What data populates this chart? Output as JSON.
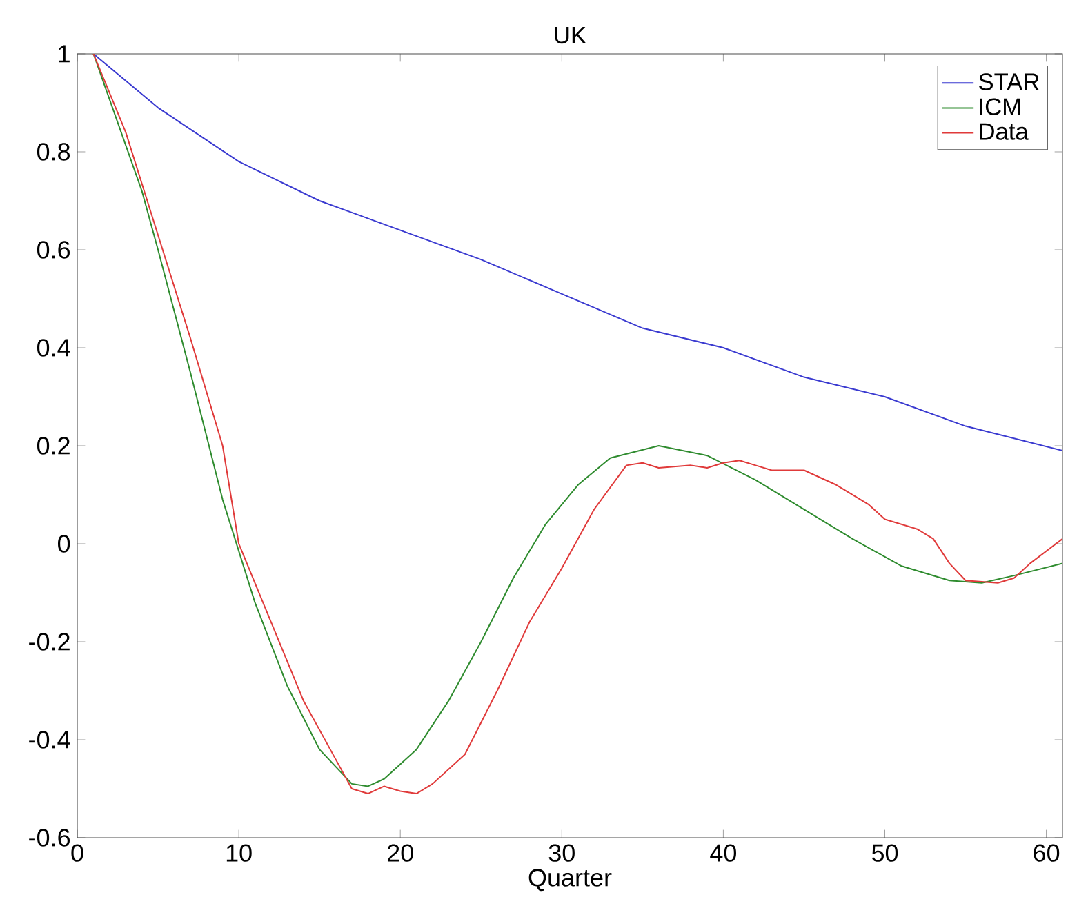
{
  "chart_data": {
    "type": "line",
    "title": "UK",
    "xlabel": "Quarter",
    "xlim": [
      0,
      61
    ],
    "ylim": [
      -0.6,
      1
    ],
    "xticks": [
      0,
      10,
      20,
      30,
      40,
      50,
      60
    ],
    "yticks": [
      -0.6,
      -0.4,
      -0.2,
      0,
      0.2,
      0.4,
      0.6,
      0.8,
      1
    ],
    "grid": false,
    "legend": "top right",
    "marker": "none",
    "line_style": "solid",
    "series": [
      {
        "name": "STAR",
        "color": "#3a3ad0",
        "x": [
          1,
          5,
          10,
          15,
          20,
          25,
          30,
          35,
          40,
          45,
          50,
          55,
          61
        ],
        "values": [
          1,
          0.89,
          0.78,
          0.7,
          0.64,
          0.58,
          0.51,
          0.44,
          0.4,
          0.34,
          0.3,
          0.24,
          0.19
        ]
      },
      {
        "name": "ICM",
        "color": "#2e8b2e",
        "x": [
          1,
          4,
          5,
          7,
          9,
          11,
          13,
          15,
          17,
          18,
          19,
          21,
          23,
          25,
          27,
          29,
          31,
          33,
          36,
          39,
          42,
          45,
          48,
          51,
          54,
          56,
          58,
          61
        ],
        "values": [
          1,
          0.72,
          0.6,
          0.35,
          0.09,
          -0.12,
          -0.29,
          -0.42,
          -0.49,
          -0.495,
          -0.48,
          -0.42,
          -0.32,
          -0.2,
          -0.07,
          0.04,
          0.12,
          0.175,
          0.2,
          0.18,
          0.13,
          0.07,
          0.01,
          -0.045,
          -0.075,
          -0.08,
          -0.065,
          -0.04
        ]
      },
      {
        "name": "Data",
        "color": "#e03a3a",
        "x": [
          1,
          3,
          5,
          7,
          9,
          10,
          11,
          12,
          14,
          16,
          17,
          18,
          19,
          20,
          21,
          22,
          24,
          26,
          28,
          30,
          32,
          34,
          35,
          36,
          38,
          39,
          40,
          41,
          42,
          43,
          45,
          47,
          49,
          50,
          52,
          53,
          54,
          55,
          57,
          58,
          59,
          61
        ],
        "values": [
          1,
          0.84,
          0.63,
          0.42,
          0.2,
          0.0,
          -0.08,
          -0.16,
          -0.32,
          -0.44,
          -0.5,
          -0.51,
          -0.495,
          -0.505,
          -0.51,
          -0.49,
          -0.43,
          -0.3,
          -0.16,
          -0.05,
          0.07,
          0.16,
          0.165,
          0.155,
          0.16,
          0.155,
          0.165,
          0.17,
          0.16,
          0.15,
          0.15,
          0.12,
          0.08,
          0.05,
          0.03,
          0.01,
          -0.04,
          -0.075,
          -0.08,
          -0.07,
          -0.04,
          0.01
        ]
      }
    ]
  }
}
